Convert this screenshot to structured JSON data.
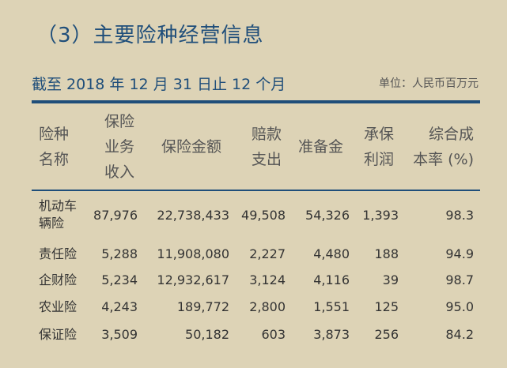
{
  "title": "（3）主要险种经营信息",
  "subtitle": "截至 2018 年 12 月 31 日止 12 个月",
  "unit": "单位：人民币百万元",
  "headers": {
    "insurance_type": [
      "险种",
      "名称"
    ],
    "premium": [
      "保险",
      "业务",
      "收入"
    ],
    "insured_amount": [
      "保险金额"
    ],
    "claims": [
      "赔款",
      "支出"
    ],
    "reserves": [
      "准备金"
    ],
    "underwriting_profit": [
      "承保",
      "利润"
    ],
    "combined_ratio": [
      "综合成",
      "本率 (%)"
    ]
  },
  "rows": [
    {
      "name": [
        "机动车",
        "辆险"
      ],
      "premium": "87,976",
      "insured": "22,738,433",
      "claims": "49,508",
      "reserves": "54,326",
      "profit": "1,393",
      "ratio": "98.3"
    },
    {
      "name": [
        "责任险"
      ],
      "premium": "5,288",
      "insured": "11,908,080",
      "claims": "2,227",
      "reserves": "4,480",
      "profit": "188",
      "ratio": "94.9"
    },
    {
      "name": [
        "企财险"
      ],
      "premium": "5,234",
      "insured": "12,932,617",
      "claims": "3,124",
      "reserves": "4,116",
      "profit": "39",
      "ratio": "98.7"
    },
    {
      "name": [
        "农业险"
      ],
      "premium": "4,243",
      "insured": "189,772",
      "claims": "2,800",
      "reserves": "1,551",
      "profit": "125",
      "ratio": "95.0"
    },
    {
      "name": [
        "保证险"
      ],
      "premium": "3,509",
      "insured": "50,182",
      "claims": "603",
      "reserves": "3,873",
      "profit": "256",
      "ratio": "84.2"
    }
  ]
}
